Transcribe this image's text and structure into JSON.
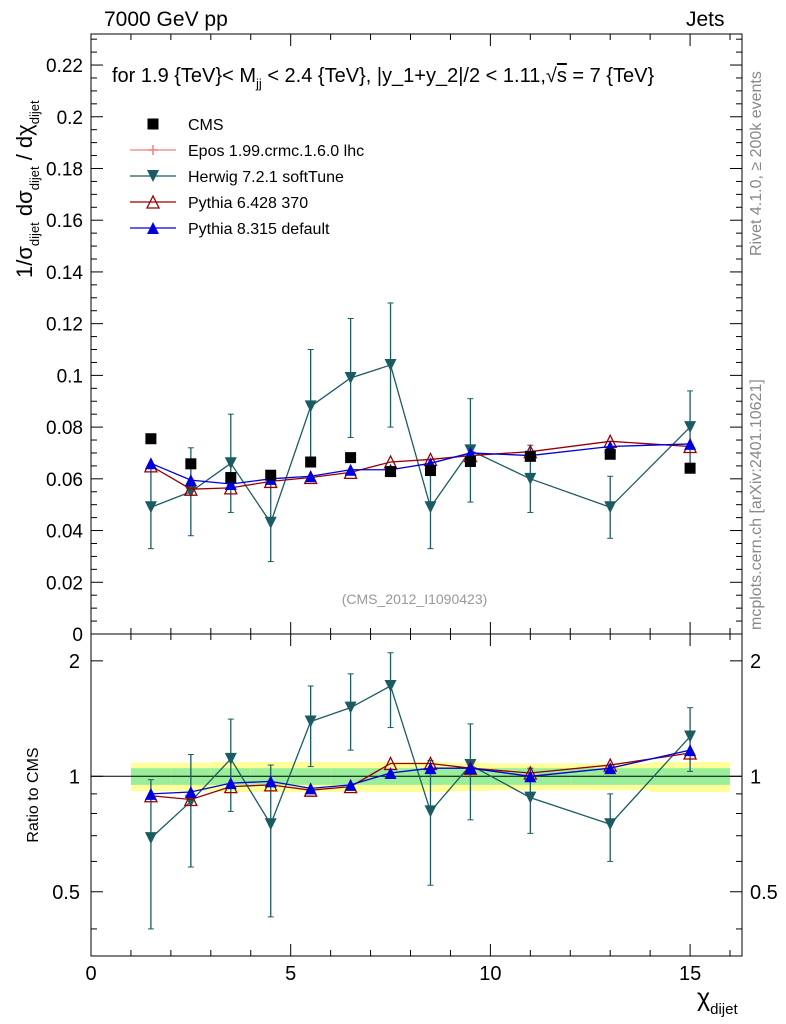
{
  "header": {
    "left": "7000 GeV pp",
    "right": "Jets"
  },
  "side_labels": {
    "rivet": "Rivet 4.1.0, ≥ 200k events",
    "mcplots": "mcplots.cern.ch [arXiv:2401.10621]"
  },
  "chart_data": {
    "type": "scatter",
    "title": "for 1.9 {TeV}< M_jj < 2.4 {TeV}, |y_1+y_2|/2 < 1.11,√s = 7 {TeV}",
    "title_parts": {
      "lead": "for 1.9 {TeV}< M",
      "sub": "jj",
      "mid": " < 2.4 {TeV}, |y_1+y_2|/2 < 1.11,",
      "sqrt": "√",
      "s": "s",
      "tail": " = 7 {TeV}"
    },
    "watermark": "(CMS_2012_I1090423)",
    "ylabel_main": "1/σ_dijet dσ_dijet / dχ_dijet",
    "ylabel_main_parts": {
      "a": "1/σ",
      "b": "dijet",
      "c": "dσ",
      "d": "dijet",
      "e": "/ dχ",
      "f": "dijet"
    },
    "ylabel_ratio": "Ratio to CMS",
    "xlabel": "χ_dijet",
    "xlabel_parts": {
      "main": "χ",
      "sub": "dijet"
    },
    "xlim": [
      0,
      16.3
    ],
    "ylim_main": [
      0,
      0.232
    ],
    "ylim_ratio": [
      0.34,
      2.35
    ],
    "x_ticks": [
      "0",
      "5",
      "10",
      "15"
    ],
    "y_ticks_main": [
      "0",
      "0.02",
      "0.04",
      "0.06",
      "0.08",
      "0.1",
      "0.12",
      "0.14",
      "0.16",
      "0.18",
      "0.2",
      "0.22"
    ],
    "y_ticks_ratio": [
      "0.5",
      "1",
      "2"
    ],
    "bins": [
      [
        1,
        2
      ],
      [
        2,
        3
      ],
      [
        3,
        4
      ],
      [
        4,
        5
      ],
      [
        5,
        6
      ],
      [
        6,
        7
      ],
      [
        7,
        8
      ],
      [
        8,
        9
      ],
      [
        9,
        10
      ],
      [
        10,
        12
      ],
      [
        12,
        14
      ],
      [
        14,
        16
      ]
    ],
    "x": [
      1.5,
      2.5,
      3.5,
      4.5,
      5.5,
      6.5,
      7.5,
      8.5,
      9.5,
      11,
      13,
      15
    ],
    "band_inner": [
      0.05,
      0.05,
      0.05,
      0.05,
      0.05,
      0.05,
      0.05,
      0.05,
      0.05,
      0.05,
      0.05,
      0.05
    ],
    "band_outer": [
      0.085,
      0.085,
      0.09,
      0.09,
      0.09,
      0.09,
      0.09,
      0.09,
      0.085,
      0.08,
      0.08,
      0.09
    ],
    "series": [
      {
        "name": "CMS",
        "color": "#000000",
        "marker": "square",
        "values": [
          0.0755,
          0.0658,
          0.0605,
          0.0614,
          0.0665,
          0.0682,
          0.0628,
          0.0632,
          0.0667,
          0.0687,
          0.0695,
          0.0641
        ]
      },
      {
        "name": "Epos 1.99.crmc.1.6.0 lhc",
        "color": "#f08080",
        "marker": "plus",
        "values": []
      },
      {
        "name": "Herwig 7.2.1 softTune",
        "color": "#1b5c63",
        "marker": "triangle-down",
        "values": [
          0.049,
          0.055,
          0.066,
          0.043,
          0.088,
          0.099,
          0.104,
          0.049,
          0.071,
          0.06,
          0.049,
          0.08
        ],
        "errors": [
          0.016,
          0.017,
          0.019,
          0.015,
          0.022,
          0.023,
          0.024,
          0.016,
          0.02,
          0.013,
          0.012,
          0.014
        ],
        "ratio": [
          0.69,
          0.86,
          1.11,
          0.75,
          1.39,
          1.51,
          1.72,
          0.81,
          1.07,
          0.88,
          0.75,
          1.27
        ],
        "ratio_errors": [
          0.29,
          0.28,
          0.3,
          0.32,
          0.33,
          0.34,
          0.38,
          0.29,
          0.3,
          0.17,
          0.15,
          0.24
        ]
      },
      {
        "name": "Pythia 6.428 370",
        "color": "#990000",
        "marker": "triangle-up-open",
        "values": [
          0.065,
          0.056,
          0.0565,
          0.059,
          0.0605,
          0.0625,
          0.0665,
          0.0675,
          0.069,
          0.0705,
          0.0745,
          0.0725
        ],
        "ratio": [
          0.89,
          0.87,
          0.94,
          0.95,
          0.92,
          0.94,
          1.08,
          1.08,
          1.05,
          1.02,
          1.07,
          1.15
        ]
      },
      {
        "name": "Pythia 8.315 default",
        "color": "#0000dd",
        "marker": "triangle-up",
        "values": [
          0.066,
          0.0595,
          0.058,
          0.06,
          0.061,
          0.0635,
          0.0635,
          0.066,
          0.07,
          0.069,
          0.0725,
          0.0735
        ],
        "ratio": [
          0.9,
          0.91,
          0.96,
          0.97,
          0.93,
          0.95,
          1.02,
          1.05,
          1.05,
          1.0,
          1.05,
          1.17
        ]
      }
    ]
  }
}
